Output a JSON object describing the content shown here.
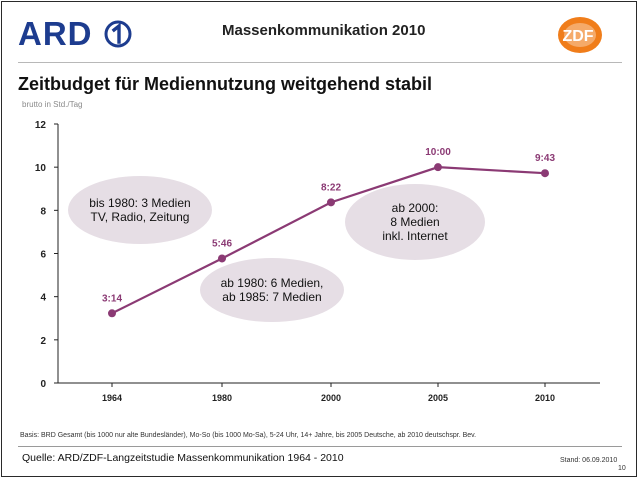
{
  "header": {
    "ard_logo_text": "ARD",
    "title": "Massenkommunikation 2010",
    "zdf_logo_text": "ZDF"
  },
  "slide": {
    "title": "Zeitbudget für Mediennutzung weitgehend stabil",
    "unit_label": "brutto in Std./Tag",
    "basis_note": "Basis: BRD Gesamt (bis 1000 nur alte Bundesländer), Mo-So (bis 1000 Mo-Sa), 5-24 Uhr, 14+ Jahre, bis 2005 Deutsche, ab 2010 deutschspr. Bev.",
    "source": "Quelle: ARD/ZDF-Langzeitstudie Massenkommunikation 1964 - 2010",
    "stand": "Stand: 06.09.2010",
    "page_number": "10"
  },
  "colors": {
    "line": "#8b3a74",
    "bubble": "#e6dee5",
    "axis": "#222222"
  },
  "chart_data": {
    "type": "line",
    "title": "Zeitbudget für Mediennutzung weitgehend stabil",
    "ylabel": "brutto in Std./Tag",
    "xlabel": "",
    "ylim": [
      0,
      12
    ],
    "yticks": [
      0,
      2,
      4,
      6,
      8,
      10,
      12
    ],
    "categories": [
      "1964",
      "1980",
      "2000",
      "2005",
      "2010"
    ],
    "values": [
      3.23,
      5.77,
      8.37,
      10.0,
      9.72
    ],
    "data_labels": [
      "3:14",
      "5:46",
      "8:22",
      "10:00",
      "9:43"
    ],
    "annotations": [
      {
        "id": "a1",
        "lines": [
          "bis 1980: 3 Medien",
          "TV, Radio, Zeitung"
        ]
      },
      {
        "id": "a2",
        "lines": [
          "ab 1980: 6 Medien,",
          "ab 1985: 7 Medien"
        ]
      },
      {
        "id": "a3",
        "lines": [
          "ab 2000:",
          "8 Medien",
          "inkl. Internet"
        ]
      }
    ]
  }
}
